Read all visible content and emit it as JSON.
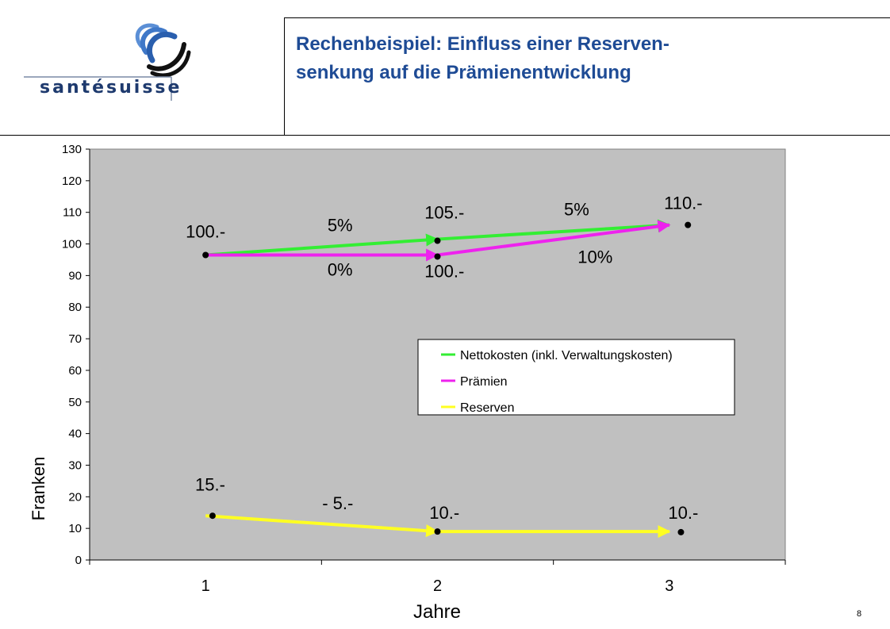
{
  "header": {
    "title_line1": "Rechenbeispiel: Einfluss einer Reserven-",
    "title_line2": "senkung auf die Prämienentwicklung",
    "logo_text": "santésuisse"
  },
  "page_number": "8",
  "colors": {
    "title": "#1e4b95",
    "plot_background": "#c0c0c0",
    "nettokosten": "#33ee33",
    "praemien": "#ee22ee",
    "reserven": "#ffff22"
  },
  "chart_data": {
    "type": "line",
    "xlabel": "Jahre",
    "ylabel": "Franken",
    "categories": [
      "1",
      "2",
      "3"
    ],
    "ylim": [
      0,
      130
    ],
    "yticks": [
      0,
      10,
      20,
      30,
      40,
      50,
      60,
      70,
      80,
      90,
      100,
      110,
      120,
      130
    ],
    "grid": false,
    "legend_position": "center-right",
    "series": [
      {
        "name": "Nettokosten (inkl. Verwaltungskosten)",
        "color": "#33ee33",
        "x": [
          1,
          2,
          3
        ],
        "values": [
          96.5,
          101.5,
          106
        ]
      },
      {
        "name": "Prämien",
        "color": "#ee22ee",
        "x": [
          1,
          2,
          3
        ],
        "values": [
          96.5,
          96.5,
          106
        ]
      },
      {
        "name": "Reserven",
        "color": "#ffff22",
        "x": [
          1,
          2,
          3
        ],
        "values": [
          14,
          9,
          9
        ]
      }
    ],
    "annotations": [
      {
        "text": "100.-",
        "x": 1.0,
        "y": 102
      },
      {
        "text": "5%",
        "x": 1.58,
        "y": 104
      },
      {
        "text": "0%",
        "x": 1.58,
        "y": 90
      },
      {
        "text": "105.-",
        "x": 2.03,
        "y": 108
      },
      {
        "text": "100.-",
        "x": 2.03,
        "y": 89.5
      },
      {
        "text": "5%",
        "x": 2.6,
        "y": 109
      },
      {
        "text": "10%",
        "x": 2.68,
        "y": 94
      },
      {
        "text": "110.-",
        "x": 3.06,
        "y": 111
      },
      {
        "text": "15.-",
        "x": 1.02,
        "y": 22
      },
      {
        "text": "- 5.-",
        "x": 1.57,
        "y": 16
      },
      {
        "text": "10.-",
        "x": 2.03,
        "y": 13
      },
      {
        "text": "10.-",
        "x": 3.06,
        "y": 13
      }
    ],
    "markers": [
      {
        "x": 1.0,
        "y": 96.5
      },
      {
        "x": 2.0,
        "y": 101
      },
      {
        "x": 2.0,
        "y": 96
      },
      {
        "x": 3.08,
        "y": 106
      },
      {
        "x": 1.03,
        "y": 14
      },
      {
        "x": 2.0,
        "y": 9
      },
      {
        "x": 3.05,
        "y": 8.8
      }
    ]
  }
}
